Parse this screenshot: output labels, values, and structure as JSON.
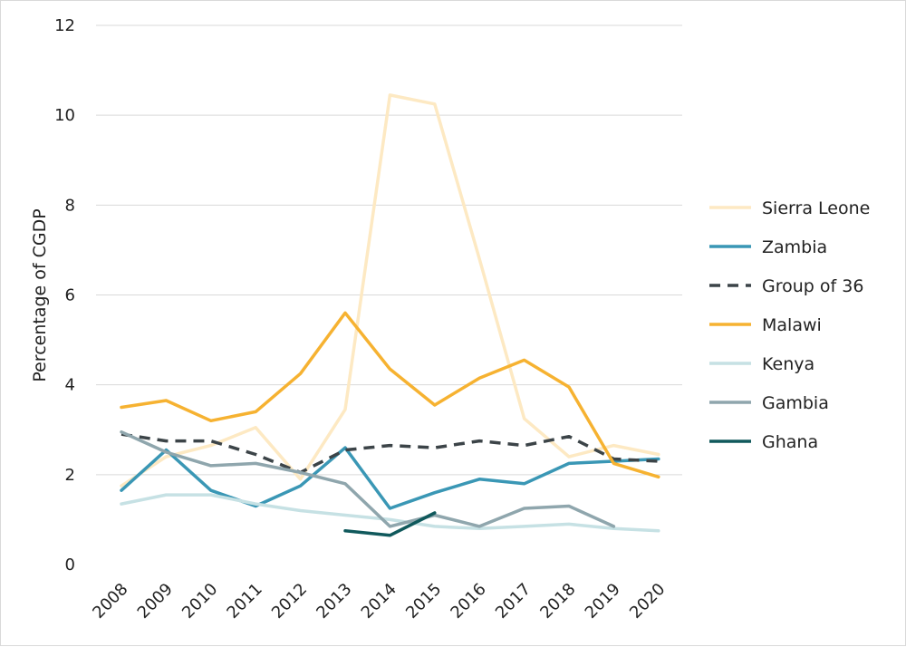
{
  "chart_data": {
    "type": "line",
    "title": "",
    "xlabel": "",
    "ylabel": "Percentage of CGDP",
    "ylim": [
      0,
      12
    ],
    "yticks": [
      0,
      2,
      4,
      6,
      8,
      10,
      12
    ],
    "grid": true,
    "legend_position": "right",
    "x": [
      "2008",
      "2009",
      "2010",
      "2011",
      "2012",
      "2013",
      "2014",
      "2015",
      "2016",
      "2017",
      "2018",
      "2019",
      "2020"
    ],
    "series": [
      {
        "name": "Sierra Leone",
        "color": "#fde9c3",
        "dash": false,
        "values": [
          1.75,
          2.4,
          2.65,
          3.05,
          1.9,
          3.45,
          10.45,
          10.25,
          6.8,
          3.25,
          2.4,
          2.65,
          2.45
        ]
      },
      {
        "name": "Zambia",
        "color": "#3a97b5",
        "dash": false,
        "values": [
          1.65,
          2.55,
          1.65,
          1.3,
          1.75,
          2.6,
          1.25,
          1.6,
          1.9,
          1.8,
          2.25,
          2.3,
          2.35
        ]
      },
      {
        "name": "Group of 36",
        "color": "#3c4448",
        "dash": true,
        "values": [
          2.9,
          2.75,
          2.75,
          2.45,
          2.05,
          2.55,
          2.65,
          2.6,
          2.75,
          2.65,
          2.85,
          2.35,
          2.3
        ]
      },
      {
        "name": "Malawi",
        "color": "#f6b231",
        "dash": false,
        "values": [
          3.5,
          3.65,
          3.2,
          3.4,
          4.25,
          5.6,
          4.35,
          3.55,
          4.15,
          4.55,
          3.95,
          2.25,
          1.95
        ]
      },
      {
        "name": "Kenya",
        "color": "#c6e1e4",
        "dash": false,
        "values": [
          1.35,
          1.55,
          1.55,
          1.35,
          1.2,
          1.1,
          1.0,
          0.85,
          0.8,
          0.85,
          0.9,
          0.8,
          0.75
        ]
      },
      {
        "name": "Gambia",
        "color": "#8fa6ad",
        "dash": false,
        "values": [
          2.95,
          2.5,
          2.2,
          2.25,
          2.05,
          1.8,
          0.85,
          1.1,
          0.85,
          1.25,
          1.3,
          0.85,
          null
        ]
      },
      {
        "name": "Ghana",
        "color": "#10595c",
        "dash": false,
        "values": [
          null,
          null,
          null,
          null,
          null,
          0.75,
          0.65,
          1.15,
          null,
          null,
          null,
          null,
          null
        ]
      }
    ]
  }
}
